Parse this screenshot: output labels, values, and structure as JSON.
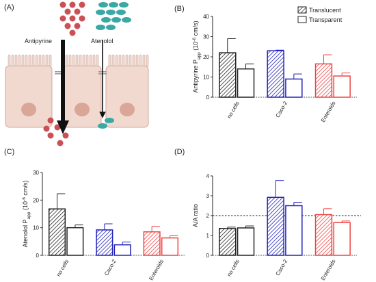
{
  "panels": {
    "a": "(A)",
    "b": "(B)",
    "c": "(C)",
    "d": "(D)"
  },
  "diagram": {
    "label_antipyrine": "Antipyrine",
    "label_atenolol": "Atenolol",
    "colors": {
      "antipyrine": "#cc4f55",
      "atenolol": "#3aa8a3",
      "cell": "#f2d9d0",
      "cell_border": "#c9a89c",
      "nucleus": "#d9a697",
      "junction": "#9a9a9a"
    }
  },
  "legend": {
    "translucent": "Translucent",
    "transparent": "Transparent"
  },
  "colors": {
    "no_cells": "#222222",
    "caco2": "#2222bb",
    "enteroids": "#ee4444"
  },
  "chart_data": [
    {
      "id": "B",
      "type": "bar",
      "ylabel_main": "Antipyrine P",
      "ylabel_sub": "app",
      "ylabel_tail": " (10",
      "ylabel_exp": "-6",
      "ylabel_unit": " cm/s)",
      "ylim": [
        0,
        40
      ],
      "yticks": [
        "0",
        "10",
        "20",
        "30",
        "40"
      ],
      "categories": [
        "no cells",
        "Caco-2",
        "Enteroids"
      ],
      "series": [
        {
          "name": "Translucent",
          "values": [
            22,
            23,
            16.5
          ],
          "errors": [
            7,
            0.3,
            4.5
          ]
        },
        {
          "name": "Transparent",
          "values": [
            14,
            9,
            10.5
          ],
          "errors": [
            2.5,
            2.5,
            1.5
          ]
        }
      ],
      "reference_line": null,
      "legend_position": "top-right"
    },
    {
      "id": "C",
      "type": "bar",
      "ylabel_main": "Atenolol P",
      "ylabel_sub": "app",
      "ylabel_tail": " (10",
      "ylabel_exp": "-6",
      "ylabel_unit": " cm/s)",
      "ylim": [
        0,
        30
      ],
      "yticks": [
        "0",
        "10",
        "20",
        "30"
      ],
      "categories": [
        "no cells",
        "Caco-2",
        "Enteroids"
      ],
      "series": [
        {
          "name": "Translucent",
          "values": [
            16.8,
            9.2,
            8.5
          ],
          "errors": [
            5.5,
            2.2,
            2.0
          ]
        },
        {
          "name": "Transparent",
          "values": [
            10,
            3.8,
            6.3
          ],
          "errors": [
            1.0,
            1.0,
            0.8
          ]
        }
      ],
      "reference_line": null
    },
    {
      "id": "D",
      "type": "bar",
      "ylabel_main": "A/A ratio",
      "ylim": [
        0,
        4
      ],
      "yticks": [
        "0",
        "1",
        "2",
        "3",
        "4"
      ],
      "categories": [
        "no cells",
        "Caco-2",
        "Enteroids"
      ],
      "series": [
        {
          "name": "Translucent",
          "values": [
            1.35,
            2.92,
            2.05
          ],
          "errors": [
            0.07,
            0.85,
            0.3
          ]
        },
        {
          "name": "Transparent",
          "values": [
            1.38,
            2.5,
            1.65
          ],
          "errors": [
            0.1,
            0.17,
            0.08
          ]
        }
      ],
      "reference_line": 2
    }
  ]
}
